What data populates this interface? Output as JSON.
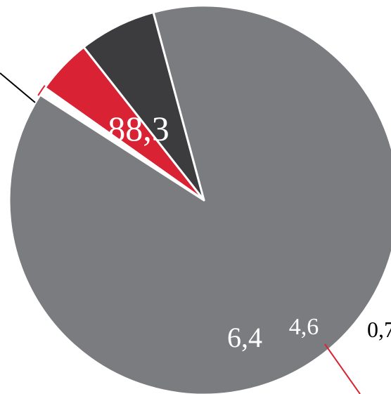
{
  "chart_data": {
    "type": "pie",
    "slices": [
      {
        "value": 88.3,
        "label": "88,3",
        "color": "#7b7c80"
      },
      {
        "value": 6.4,
        "label": "6,4",
        "color": "#3c3c3e"
      },
      {
        "value": 4.6,
        "label": "4,6",
        "color": "#d92334"
      },
      {
        "value": 0.7,
        "label": "0,7",
        "color": "#ffffff"
      }
    ],
    "slice_border_color": "#ffffff",
    "label_colors": {
      "inside": "#ffffff",
      "outside": "#000000"
    },
    "leader_line_colors": {
      "top_left": "#000000",
      "bottom_right": "#d92334"
    }
  }
}
